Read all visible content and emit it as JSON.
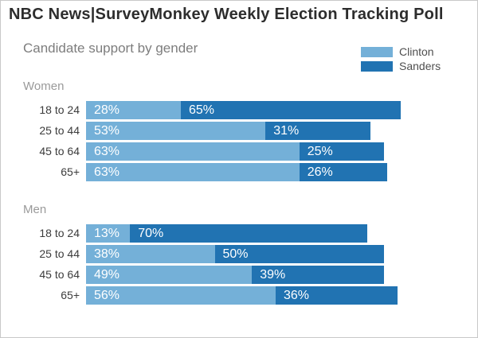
{
  "page": {
    "background": "#ffffff",
    "border_color": "#c8c8c8"
  },
  "colors": {
    "clinton": "#74b0d8",
    "sanders": "#2173b2",
    "title_text": "#2d2d2d",
    "subtitle_text": "#7d7d7d",
    "section_text": "#9a9a9a",
    "category_text": "#3c3c3c",
    "value_text": "#ffffff",
    "legend_text": "#4f4f4f"
  },
  "chart_data": {
    "type": "bar",
    "orientation": "horizontal",
    "stacked": true,
    "title": "NBC News|SurveyMonkey Weekly Election Tracking Poll",
    "subtitle": "Candidate support by gender",
    "value_suffix": "%",
    "xlim": [
      0,
      100
    ],
    "axis_visible": false,
    "grid": false,
    "legend": {
      "position": "top-right",
      "entries": [
        {
          "label": "Clinton",
          "color": "#74b0d8"
        },
        {
          "label": "Sanders",
          "color": "#2173b2"
        }
      ]
    },
    "groups": [
      {
        "label": "Women",
        "categories": [
          "18 to 24",
          "25 to 44",
          "45 to 64",
          "65+"
        ],
        "series": [
          {
            "name": "Clinton",
            "color": "#74b0d8",
            "values": [
              28,
              53,
              63,
              63
            ]
          },
          {
            "name": "Sanders",
            "color": "#2173b2",
            "values": [
              65,
              31,
              25,
              26
            ]
          }
        ]
      },
      {
        "label": "Men",
        "categories": [
          "18 to 24",
          "25 to 44",
          "45 to 64",
          "65+"
        ],
        "series": [
          {
            "name": "Clinton",
            "color": "#74b0d8",
            "values": [
              13,
              38,
              49,
              56
            ]
          },
          {
            "name": "Sanders",
            "color": "#2173b2",
            "values": [
              70,
              50,
              39,
              36
            ]
          }
        ]
      }
    ]
  }
}
